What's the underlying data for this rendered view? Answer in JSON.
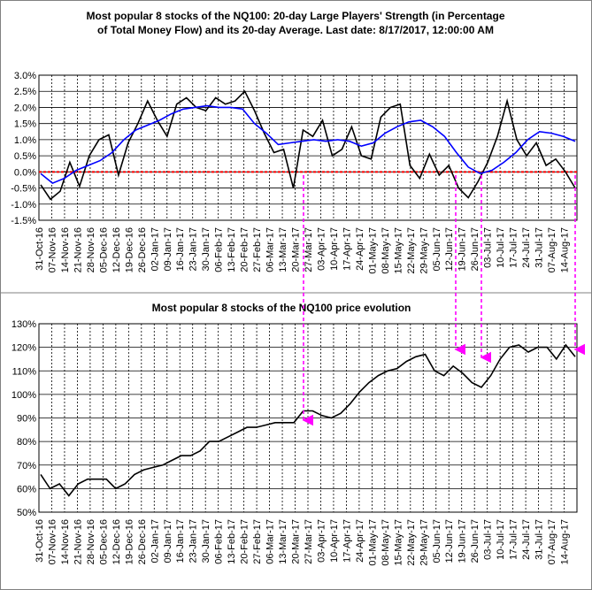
{
  "chart_data": [
    {
      "type": "line",
      "title_line1": "Most popular 8 stocks of the NQ100: 20-day Large Players' Strength (in Percentage",
      "title_line2": "of Total Money Flow) and its 20-day Average. Last date: 8/17/2017, 12:00:00 AM",
      "ylim": [
        -1.5,
        3.0
      ],
      "yticks": [
        "3.0%",
        "2.5%",
        "2.0%",
        "1.5%",
        "1.0%",
        "0.5%",
        "0.0%",
        "-0.5%",
        "-1.0%",
        "-1.5%"
      ],
      "x_labels": [
        "31-Oct-16",
        "07-Nov-16",
        "14-Nov-16",
        "21-Nov-16",
        "28-Nov-16",
        "05-Dec-16",
        "12-Dec-16",
        "19-Dec-16",
        "26-Dec-16",
        "02-Jan-17",
        "09-Jan-17",
        "16-Jan-17",
        "23-Jan-17",
        "30-Jan-17",
        "06-Feb-17",
        "13-Feb-17",
        "20-Feb-17",
        "27-Feb-17",
        "06-Mar-17",
        "13-Mar-17",
        "20-Mar-17",
        "27-Mar-17",
        "03-Apr-17",
        "10-Apr-17",
        "17-Apr-17",
        "24-Apr-17",
        "01-May-17",
        "08-May-17",
        "15-May-17",
        "22-May-17",
        "29-May-17",
        "05-Jun-17",
        "12-Jun-17",
        "19-Jun-17",
        "26-Jun-17",
        "03-Jul-17",
        "10-Jul-17",
        "17-Jul-17",
        "24-Jul-17",
        "31-Jul-17",
        "07-Aug-17",
        "14-Aug-17"
      ],
      "grid": true,
      "zero_line_color": "#ff0000",
      "series": [
        {
          "color": "#000000",
          "values": [
            -0.4,
            -0.85,
            -0.6,
            0.3,
            -0.45,
            0.5,
            1.0,
            1.15,
            -0.1,
            0.9,
            1.5,
            2.2,
            1.6,
            1.1,
            2.1,
            2.3,
            2.0,
            1.9,
            2.3,
            2.1,
            2.2,
            2.5,
            1.9,
            1.2,
            0.6,
            0.7,
            -0.5,
            1.3,
            1.1,
            1.6,
            0.5,
            0.7,
            1.4,
            0.5,
            0.4,
            1.7,
            2.0,
            2.1,
            0.2,
            -0.2,
            0.55,
            -0.1,
            0.2,
            -0.5,
            -0.8,
            -0.3,
            0.3,
            1.1,
            2.2,
            1.0,
            0.5,
            0.9,
            0.2,
            0.4,
            0.0,
            -0.5
          ]
        },
        {
          "color": "#0000ff",
          "values": [
            -0.05,
            -0.35,
            -0.2,
            0.05,
            0.2,
            0.35,
            0.6,
            1.0,
            1.3,
            1.45,
            1.6,
            1.8,
            1.95,
            2.0,
            2.05,
            2.0,
            2.0,
            1.95,
            1.5,
            1.2,
            0.85,
            0.9,
            0.95,
            1.0,
            0.95,
            1.0,
            0.95,
            0.8,
            0.9,
            1.2,
            1.4,
            1.55,
            1.6,
            1.4,
            1.1,
            0.6,
            0.15,
            -0.05,
            0.05,
            0.3,
            0.6,
            1.0,
            1.25,
            1.2,
            1.1,
            0.95
          ]
        }
      ]
    },
    {
      "type": "line",
      "title": "Most popular 8 stocks of the NQ100 price evolution",
      "ylim": [
        50,
        130
      ],
      "yticks": [
        "130%",
        "120%",
        "110%",
        "100%",
        "90%",
        "80%",
        "70%",
        "60%",
        "50%"
      ],
      "x_labels": [
        "31-Oct-16",
        "07-Nov-16",
        "14-Nov-16",
        "21-Nov-16",
        "28-Nov-16",
        "05-Dec-16",
        "12-Dec-16",
        "19-Dec-16",
        "26-Dec-16",
        "02-Jan-17",
        "09-Jan-17",
        "16-Jan-17",
        "23-Jan-17",
        "30-Jan-17",
        "06-Feb-17",
        "13-Feb-17",
        "20-Feb-17",
        "27-Feb-17",
        "06-Mar-17",
        "13-Mar-17",
        "20-Mar-17",
        "27-Mar-17",
        "03-Apr-17",
        "10-Apr-17",
        "17-Apr-17",
        "24-Apr-17",
        "01-May-17",
        "08-May-17",
        "15-May-17",
        "22-May-17",
        "29-May-17",
        "05-Jun-17",
        "12-Jun-17",
        "19-Jun-17",
        "26-Jun-17",
        "03-Jul-17",
        "10-Jul-17",
        "17-Jul-17",
        "24-Jul-17",
        "31-Jul-17",
        "07-Aug-17",
        "14-Aug-17"
      ],
      "grid": true,
      "series": [
        {
          "color": "#000000",
          "values": [
            66,
            60,
            62,
            57,
            62,
            64,
            64,
            64,
            60,
            62,
            66,
            68,
            69,
            70,
            72,
            74,
            74,
            76,
            80,
            80,
            82,
            84,
            86,
            86,
            87,
            88,
            88,
            88,
            93,
            93,
            91,
            90,
            92,
            96,
            101,
            105,
            108,
            110,
            111,
            114,
            116,
            117,
            110,
            108,
            112,
            109,
            105,
            103,
            108,
            115,
            120,
            121,
            118,
            120,
            120,
            115,
            121,
            116
          ]
        }
      ]
    }
  ],
  "arrows_color": "#ff00ff"
}
